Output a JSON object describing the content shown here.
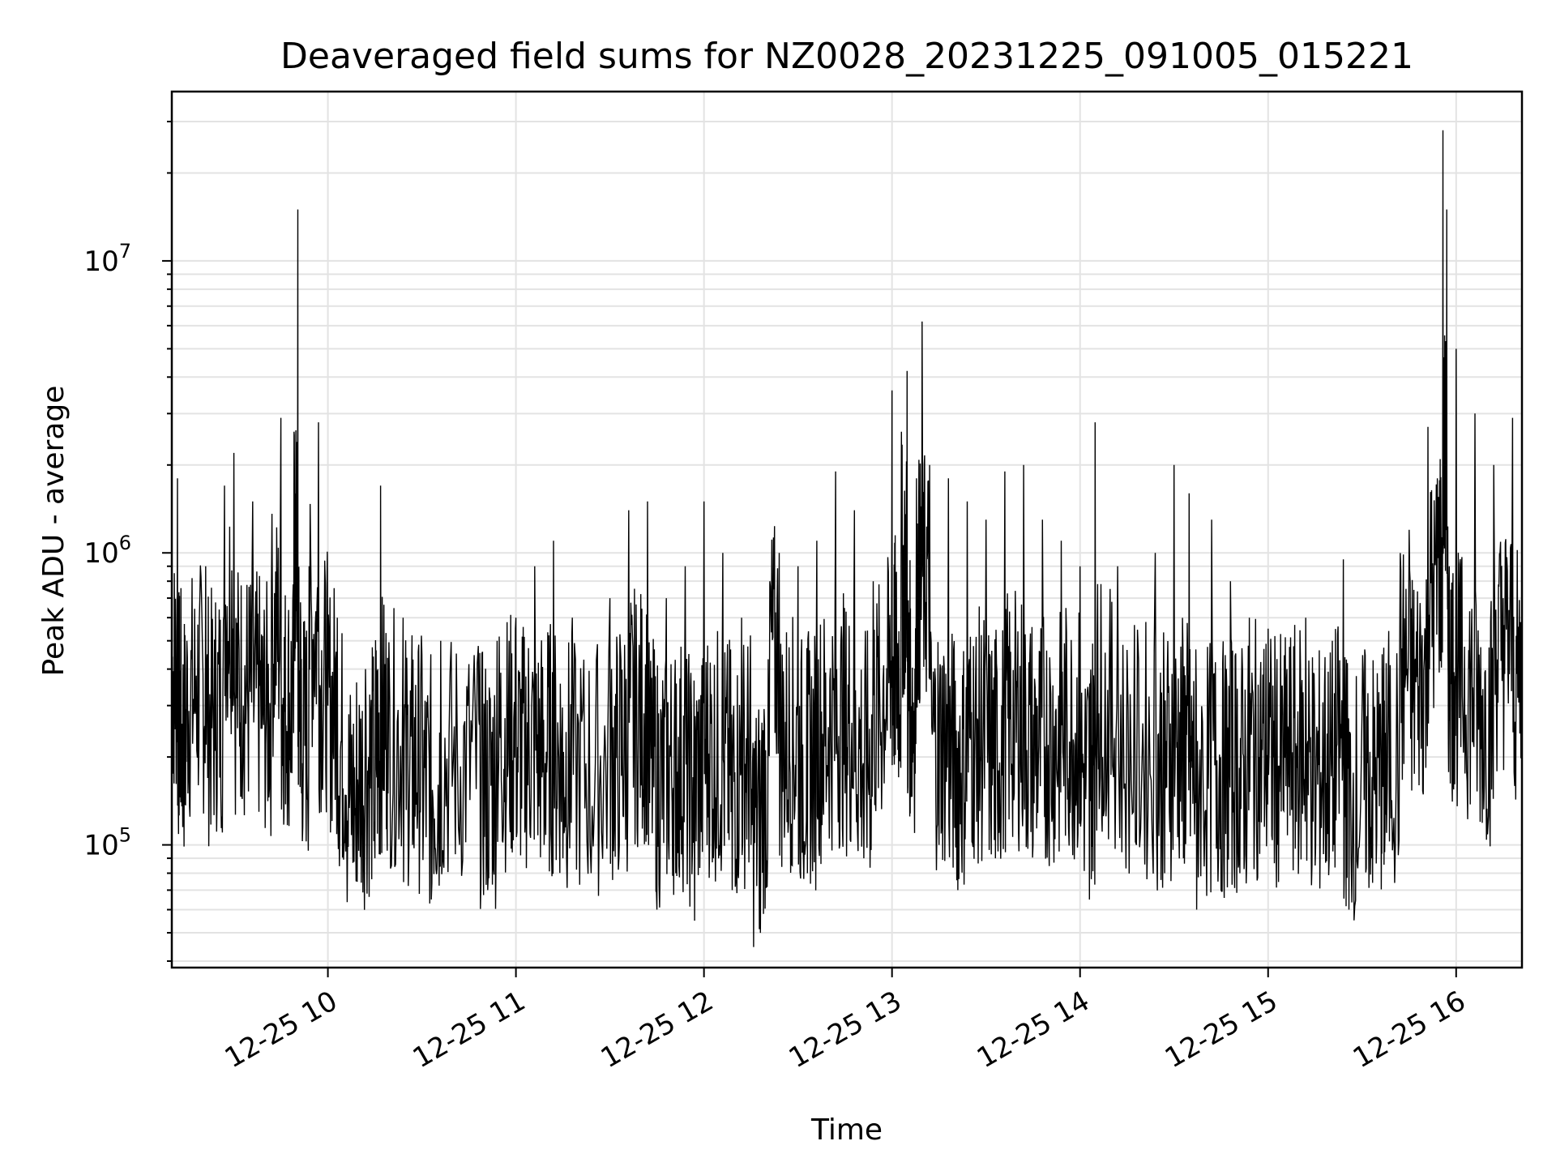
{
  "chart_data": {
    "type": "line",
    "title": "Deaveraged field sums for NZ0028_20231225_091005_015221",
    "xlabel": "Time",
    "ylabel": "Peak ADU - average",
    "yscale": "log",
    "ylim": [
      38000,
      38000000
    ],
    "x_range_hours": [
      9.17,
      16.35
    ],
    "x_ticks": [
      {
        "hour": 10,
        "label": "12-25 10"
      },
      {
        "hour": 11,
        "label": "12-25 11"
      },
      {
        "hour": 12,
        "label": "12-25 12"
      },
      {
        "hour": 13,
        "label": "12-25 13"
      },
      {
        "hour": 14,
        "label": "12-25 14"
      },
      {
        "hour": 15,
        "label": "12-25 15"
      },
      {
        "hour": 16,
        "label": "12-25 16"
      }
    ],
    "y_ticks": [
      {
        "value": 100000,
        "base": "10",
        "exp": "5"
      },
      {
        "value": 1000000,
        "base": "10",
        "exp": "6"
      },
      {
        "value": 10000000,
        "base": "10",
        "exp": "7"
      }
    ],
    "grid": true,
    "line_color": "#000000",
    "series": [
      {
        "points": [
          [
            9.17,
            420000
          ],
          [
            9.2,
            1800000
          ],
          [
            9.22,
            170000
          ],
          [
            9.25,
            500000
          ],
          [
            9.3,
            380000
          ],
          [
            9.35,
            900000
          ],
          [
            9.4,
            210000
          ],
          [
            9.45,
            1700000
          ],
          [
            9.5,
            2200000
          ],
          [
            9.55,
            300000
          ],
          [
            9.6,
            1500000
          ],
          [
            9.65,
            250000
          ],
          [
            9.7,
            800000
          ],
          [
            9.75,
            2900000
          ],
          [
            9.78,
            200000
          ],
          [
            9.82,
            2600000
          ],
          [
            9.84,
            15000000
          ],
          [
            9.86,
            150000
          ],
          [
            9.9,
            900000
          ],
          [
            9.95,
            2800000
          ],
          [
            10.0,
            300000
          ],
          [
            10.05,
            600000
          ],
          [
            10.1,
            120000
          ],
          [
            10.15,
            75000
          ],
          [
            10.2,
            400000
          ],
          [
            10.25,
            90000
          ],
          [
            10.28,
            1700000
          ],
          [
            10.32,
            150000
          ],
          [
            10.4,
            600000
          ],
          [
            10.45,
            100000
          ],
          [
            10.5,
            450000
          ],
          [
            10.55,
            65000
          ],
          [
            10.6,
            500000
          ],
          [
            10.7,
            100000
          ],
          [
            10.8,
            480000
          ],
          [
            10.85,
            70000
          ],
          [
            10.9,
            500000
          ],
          [
            10.95,
            150000
          ],
          [
            11.0,
            600000
          ],
          [
            11.05,
            120000
          ],
          [
            11.1,
            900000
          ],
          [
            11.15,
            100000
          ],
          [
            11.2,
            1100000
          ],
          [
            11.25,
            90000
          ],
          [
            11.3,
            600000
          ],
          [
            11.4,
            80000
          ],
          [
            11.5,
            700000
          ],
          [
            11.55,
            100000
          ],
          [
            11.6,
            1400000
          ],
          [
            11.65,
            180000
          ],
          [
            11.7,
            1500000
          ],
          [
            11.75,
            60000
          ],
          [
            11.8,
            700000
          ],
          [
            11.85,
            80000
          ],
          [
            11.9,
            900000
          ],
          [
            11.95,
            55000
          ],
          [
            12.0,
            1500000
          ],
          [
            12.05,
            90000
          ],
          [
            12.1,
            1000000
          ],
          [
            12.15,
            70000
          ],
          [
            12.2,
            600000
          ],
          [
            12.25,
            100000
          ],
          [
            12.3,
            50000
          ],
          [
            12.35,
            800000
          ],
          [
            12.4,
            1000000
          ],
          [
            12.45,
            120000
          ],
          [
            12.5,
            900000
          ],
          [
            12.55,
            80000
          ],
          [
            12.6,
            1100000
          ],
          [
            12.65,
            140000
          ],
          [
            12.7,
            1900000
          ],
          [
            12.75,
            150000
          ],
          [
            12.8,
            1400000
          ],
          [
            12.85,
            90000
          ],
          [
            12.9,
            800000
          ],
          [
            12.95,
            250000
          ],
          [
            13.0,
            3600000
          ],
          [
            13.02,
            400000
          ],
          [
            13.05,
            2600000
          ],
          [
            13.08,
            4200000
          ],
          [
            13.1,
            220000
          ],
          [
            13.13,
            1800000
          ],
          [
            13.16,
            6200000
          ],
          [
            13.2,
            2000000
          ],
          [
            13.25,
            100000
          ],
          [
            13.3,
            1800000
          ],
          [
            13.35,
            70000
          ],
          [
            13.4,
            1500000
          ],
          [
            13.45,
            120000
          ],
          [
            13.5,
            1300000
          ],
          [
            13.55,
            90000
          ],
          [
            13.6,
            1900000
          ],
          [
            13.65,
            150000
          ],
          [
            13.7,
            2000000
          ],
          [
            13.75,
            100000
          ],
          [
            13.8,
            1300000
          ],
          [
            13.85,
            120000
          ],
          [
            13.9,
            1100000
          ],
          [
            13.95,
            150000
          ],
          [
            14.0,
            900000
          ],
          [
            14.05,
            65000
          ],
          [
            14.08,
            2800000
          ],
          [
            14.12,
            200000
          ],
          [
            14.2,
            900000
          ],
          [
            14.3,
            100000
          ],
          [
            14.4,
            1000000
          ],
          [
            14.45,
            80000
          ],
          [
            14.5,
            2000000
          ],
          [
            14.55,
            90000
          ],
          [
            14.58,
            1600000
          ],
          [
            14.62,
            60000
          ],
          [
            14.7,
            1300000
          ],
          [
            14.75,
            70000
          ],
          [
            14.8,
            800000
          ],
          [
            14.85,
            80000
          ],
          [
            14.9,
            600000
          ],
          [
            14.95,
            120000
          ],
          [
            15.0,
            550000
          ],
          [
            15.05,
            100000
          ],
          [
            15.1,
            400000
          ],
          [
            15.15,
            120000
          ],
          [
            15.2,
            600000
          ],
          [
            15.25,
            85000
          ],
          [
            15.3,
            350000
          ],
          [
            15.35,
            100000
          ],
          [
            15.4,
            950000
          ],
          [
            15.43,
            60000
          ],
          [
            15.5,
            300000
          ],
          [
            15.55,
            90000
          ],
          [
            15.6,
            200000
          ],
          [
            15.63,
            110000
          ],
          [
            15.7,
            500000
          ],
          [
            15.75,
            1200000
          ],
          [
            15.8,
            350000
          ],
          [
            15.85,
            2700000
          ],
          [
            15.9,
            1800000
          ],
          [
            15.93,
            28000000
          ],
          [
            15.95,
            15000000
          ],
          [
            15.97,
            300000
          ],
          [
            16.0,
            5000000
          ],
          [
            16.05,
            250000
          ],
          [
            16.1,
            3000000
          ],
          [
            16.15,
            160000
          ],
          [
            16.2,
            2000000
          ],
          [
            16.25,
            700000
          ],
          [
            16.3,
            2900000
          ],
          [
            16.35,
            300000
          ]
        ]
      }
    ]
  }
}
